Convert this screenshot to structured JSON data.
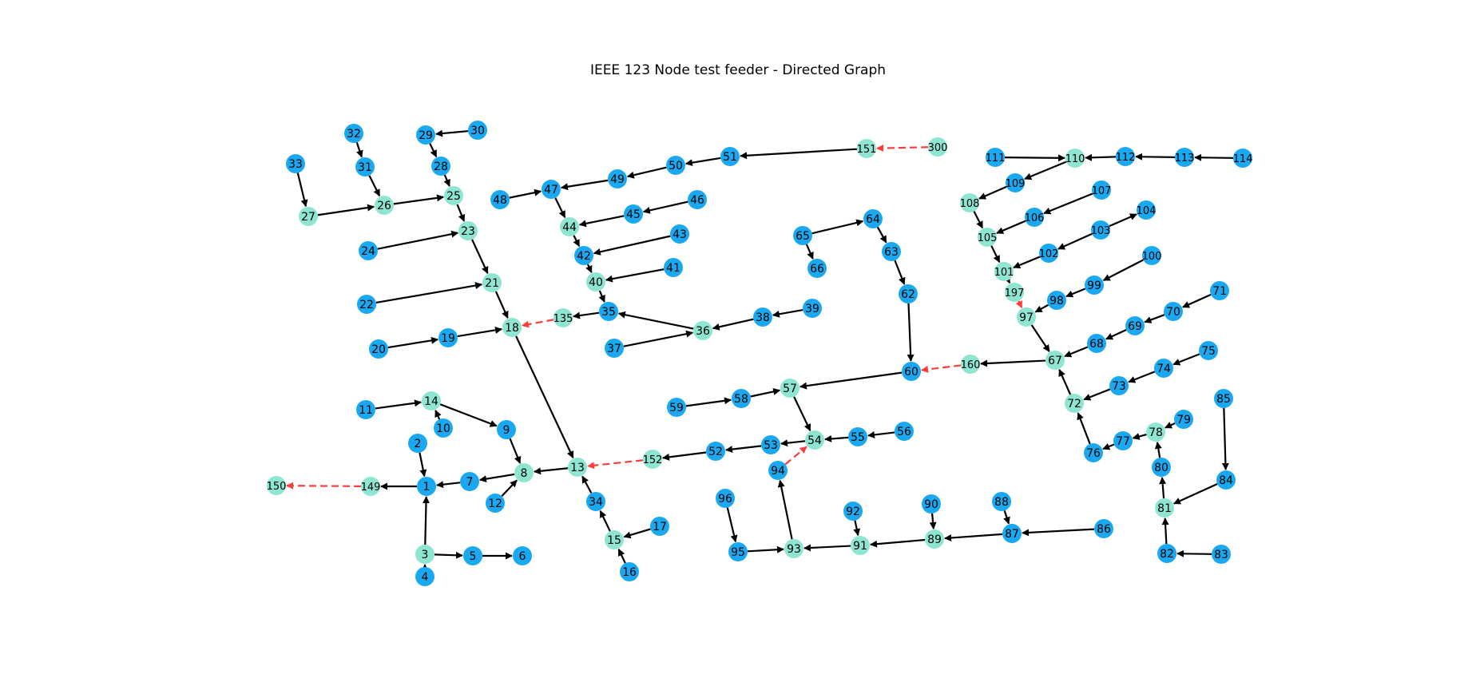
{
  "title": "IEEE 123 Node test feeder - Directed Graph",
  "colors": {
    "node_blue": "#1aa9f0",
    "node_teal": "#8ee6d2",
    "edge_normal": "#000000",
    "edge_switch": "#ff3c3c",
    "label": "#000000"
  },
  "nodes": [
    {
      "id": "1",
      "color": "blue"
    },
    {
      "id": "2",
      "color": "blue"
    },
    {
      "id": "3",
      "color": "teal"
    },
    {
      "id": "4",
      "color": "blue"
    },
    {
      "id": "5",
      "color": "blue"
    },
    {
      "id": "6",
      "color": "blue"
    },
    {
      "id": "7",
      "color": "blue"
    },
    {
      "id": "8",
      "color": "teal"
    },
    {
      "id": "9",
      "color": "blue"
    },
    {
      "id": "10",
      "color": "blue"
    },
    {
      "id": "11",
      "color": "blue"
    },
    {
      "id": "12",
      "color": "blue"
    },
    {
      "id": "13",
      "color": "teal"
    },
    {
      "id": "14",
      "color": "teal"
    },
    {
      "id": "15",
      "color": "teal"
    },
    {
      "id": "16",
      "color": "blue"
    },
    {
      "id": "17",
      "color": "blue"
    },
    {
      "id": "18",
      "color": "teal"
    },
    {
      "id": "19",
      "color": "blue"
    },
    {
      "id": "20",
      "color": "blue"
    },
    {
      "id": "21",
      "color": "teal"
    },
    {
      "id": "22",
      "color": "blue"
    },
    {
      "id": "23",
      "color": "teal"
    },
    {
      "id": "24",
      "color": "blue"
    },
    {
      "id": "25",
      "color": "teal"
    },
    {
      "id": "26",
      "color": "teal"
    },
    {
      "id": "27",
      "color": "teal"
    },
    {
      "id": "28",
      "color": "blue"
    },
    {
      "id": "29",
      "color": "blue"
    },
    {
      "id": "30",
      "color": "blue"
    },
    {
      "id": "31",
      "color": "blue"
    },
    {
      "id": "32",
      "color": "blue"
    },
    {
      "id": "33",
      "color": "blue"
    },
    {
      "id": "34",
      "color": "blue"
    },
    {
      "id": "35",
      "color": "blue"
    },
    {
      "id": "36",
      "color": "teal"
    },
    {
      "id": "37",
      "color": "blue"
    },
    {
      "id": "38",
      "color": "blue"
    },
    {
      "id": "39",
      "color": "blue"
    },
    {
      "id": "40",
      "color": "teal"
    },
    {
      "id": "41",
      "color": "blue"
    },
    {
      "id": "42",
      "color": "blue"
    },
    {
      "id": "43",
      "color": "blue"
    },
    {
      "id": "44",
      "color": "teal"
    },
    {
      "id": "45",
      "color": "blue"
    },
    {
      "id": "46",
      "color": "blue"
    },
    {
      "id": "47",
      "color": "blue"
    },
    {
      "id": "48",
      "color": "blue"
    },
    {
      "id": "49",
      "color": "blue"
    },
    {
      "id": "50",
      "color": "blue"
    },
    {
      "id": "51",
      "color": "blue"
    },
    {
      "id": "52",
      "color": "blue"
    },
    {
      "id": "53",
      "color": "blue"
    },
    {
      "id": "54",
      "color": "teal"
    },
    {
      "id": "55",
      "color": "blue"
    },
    {
      "id": "56",
      "color": "blue"
    },
    {
      "id": "57",
      "color": "teal"
    },
    {
      "id": "58",
      "color": "blue"
    },
    {
      "id": "59",
      "color": "blue"
    },
    {
      "id": "60",
      "color": "blue"
    },
    {
      "id": "62",
      "color": "blue"
    },
    {
      "id": "63",
      "color": "blue"
    },
    {
      "id": "64",
      "color": "blue"
    },
    {
      "id": "65",
      "color": "blue"
    },
    {
      "id": "66",
      "color": "blue"
    },
    {
      "id": "67",
      "color": "teal"
    },
    {
      "id": "68",
      "color": "blue"
    },
    {
      "id": "69",
      "color": "blue"
    },
    {
      "id": "70",
      "color": "blue"
    },
    {
      "id": "71",
      "color": "blue"
    },
    {
      "id": "72",
      "color": "teal"
    },
    {
      "id": "73",
      "color": "blue"
    },
    {
      "id": "74",
      "color": "blue"
    },
    {
      "id": "75",
      "color": "blue"
    },
    {
      "id": "76",
      "color": "blue"
    },
    {
      "id": "77",
      "color": "blue"
    },
    {
      "id": "78",
      "color": "teal"
    },
    {
      "id": "79",
      "color": "blue"
    },
    {
      "id": "80",
      "color": "blue"
    },
    {
      "id": "81",
      "color": "teal"
    },
    {
      "id": "82",
      "color": "blue"
    },
    {
      "id": "83",
      "color": "blue"
    },
    {
      "id": "84",
      "color": "blue"
    },
    {
      "id": "85",
      "color": "blue"
    },
    {
      "id": "86",
      "color": "blue"
    },
    {
      "id": "87",
      "color": "blue"
    },
    {
      "id": "88",
      "color": "blue"
    },
    {
      "id": "89",
      "color": "teal"
    },
    {
      "id": "90",
      "color": "blue"
    },
    {
      "id": "91",
      "color": "teal"
    },
    {
      "id": "92",
      "color": "blue"
    },
    {
      "id": "93",
      "color": "teal"
    },
    {
      "id": "94",
      "color": "blue"
    },
    {
      "id": "95",
      "color": "blue"
    },
    {
      "id": "96",
      "color": "blue"
    },
    {
      "id": "97",
      "color": "teal"
    },
    {
      "id": "98",
      "color": "blue"
    },
    {
      "id": "99",
      "color": "blue"
    },
    {
      "id": "100",
      "color": "blue"
    },
    {
      "id": "101",
      "color": "teal"
    },
    {
      "id": "102",
      "color": "blue"
    },
    {
      "id": "103",
      "color": "blue"
    },
    {
      "id": "104",
      "color": "blue"
    },
    {
      "id": "105",
      "color": "teal"
    },
    {
      "id": "106",
      "color": "blue"
    },
    {
      "id": "107",
      "color": "blue"
    },
    {
      "id": "108",
      "color": "teal"
    },
    {
      "id": "109",
      "color": "blue"
    },
    {
      "id": "110",
      "color": "teal"
    },
    {
      "id": "111",
      "color": "blue"
    },
    {
      "id": "112",
      "color": "blue"
    },
    {
      "id": "113",
      "color": "blue"
    },
    {
      "id": "114",
      "color": "blue"
    },
    {
      "id": "135",
      "color": "teal"
    },
    {
      "id": "149",
      "color": "teal"
    },
    {
      "id": "150",
      "color": "teal"
    },
    {
      "id": "151",
      "color": "teal"
    },
    {
      "id": "152",
      "color": "teal"
    },
    {
      "id": "160",
      "color": "teal"
    },
    {
      "id": "197",
      "color": "teal"
    },
    {
      "id": "300",
      "color": "teal"
    }
  ],
  "edges": [
    {
      "from": "30",
      "to": "29",
      "type": "normal"
    },
    {
      "from": "29",
      "to": "28",
      "type": "normal"
    },
    {
      "from": "28",
      "to": "25",
      "type": "normal"
    },
    {
      "from": "32",
      "to": "31",
      "type": "normal"
    },
    {
      "from": "31",
      "to": "26",
      "type": "normal"
    },
    {
      "from": "33",
      "to": "27",
      "type": "normal"
    },
    {
      "from": "27",
      "to": "26",
      "type": "normal"
    },
    {
      "from": "26",
      "to": "25",
      "type": "normal"
    },
    {
      "from": "25",
      "to": "23",
      "type": "normal"
    },
    {
      "from": "24",
      "to": "23",
      "type": "normal"
    },
    {
      "from": "23",
      "to": "21",
      "type": "normal"
    },
    {
      "from": "22",
      "to": "21",
      "type": "normal"
    },
    {
      "from": "21",
      "to": "18",
      "type": "normal"
    },
    {
      "from": "20",
      "to": "19",
      "type": "normal"
    },
    {
      "from": "19",
      "to": "18",
      "type": "normal"
    },
    {
      "from": "135",
      "to": "18",
      "type": "switch"
    },
    {
      "from": "18",
      "to": "13",
      "type": "normal"
    },
    {
      "from": "35",
      "to": "135",
      "type": "normal"
    },
    {
      "from": "36",
      "to": "35",
      "type": "normal"
    },
    {
      "from": "40",
      "to": "35",
      "type": "normal"
    },
    {
      "from": "41",
      "to": "40",
      "type": "normal"
    },
    {
      "from": "42",
      "to": "40",
      "type": "normal"
    },
    {
      "from": "43",
      "to": "42",
      "type": "normal"
    },
    {
      "from": "44",
      "to": "42",
      "type": "normal"
    },
    {
      "from": "45",
      "to": "44",
      "type": "normal"
    },
    {
      "from": "46",
      "to": "45",
      "type": "normal"
    },
    {
      "from": "47",
      "to": "44",
      "type": "normal"
    },
    {
      "from": "48",
      "to": "47",
      "type": "normal"
    },
    {
      "from": "49",
      "to": "47",
      "type": "normal"
    },
    {
      "from": "50",
      "to": "49",
      "type": "normal"
    },
    {
      "from": "51",
      "to": "50",
      "type": "normal"
    },
    {
      "from": "151",
      "to": "51",
      "type": "normal"
    },
    {
      "from": "300",
      "to": "151",
      "type": "switch"
    },
    {
      "from": "37",
      "to": "36",
      "type": "normal"
    },
    {
      "from": "38",
      "to": "36",
      "type": "normal"
    },
    {
      "from": "39",
      "to": "38",
      "type": "normal"
    },
    {
      "from": "11",
      "to": "14",
      "type": "normal"
    },
    {
      "from": "10",
      "to": "14",
      "type": "normal"
    },
    {
      "from": "14",
      "to": "9",
      "type": "normal"
    },
    {
      "from": "9",
      "to": "8",
      "type": "normal"
    },
    {
      "from": "12",
      "to": "8",
      "type": "normal"
    },
    {
      "from": "8",
      "to": "7",
      "type": "normal"
    },
    {
      "from": "7",
      "to": "1",
      "type": "normal"
    },
    {
      "from": "2",
      "to": "1",
      "type": "normal"
    },
    {
      "from": "3",
      "to": "1",
      "type": "normal"
    },
    {
      "from": "3",
      "to": "5",
      "type": "normal"
    },
    {
      "from": "5",
      "to": "6",
      "type": "normal"
    },
    {
      "from": "4",
      "to": "3",
      "type": "normal"
    },
    {
      "from": "1",
      "to": "149",
      "type": "normal"
    },
    {
      "from": "149",
      "to": "150",
      "type": "switch"
    },
    {
      "from": "13",
      "to": "8",
      "type": "normal"
    },
    {
      "from": "34",
      "to": "13",
      "type": "normal"
    },
    {
      "from": "15",
      "to": "34",
      "type": "normal"
    },
    {
      "from": "17",
      "to": "15",
      "type": "normal"
    },
    {
      "from": "16",
      "to": "15",
      "type": "normal"
    },
    {
      "from": "152",
      "to": "13",
      "type": "switch"
    },
    {
      "from": "52",
      "to": "152",
      "type": "normal"
    },
    {
      "from": "53",
      "to": "52",
      "type": "normal"
    },
    {
      "from": "54",
      "to": "53",
      "type": "normal"
    },
    {
      "from": "55",
      "to": "54",
      "type": "normal"
    },
    {
      "from": "56",
      "to": "55",
      "type": "normal"
    },
    {
      "from": "57",
      "to": "54",
      "type": "normal"
    },
    {
      "from": "58",
      "to": "57",
      "type": "normal"
    },
    {
      "from": "59",
      "to": "58",
      "type": "normal"
    },
    {
      "from": "60",
      "to": "57",
      "type": "normal"
    },
    {
      "from": "94",
      "to": "54",
      "type": "switch"
    },
    {
      "from": "93",
      "to": "94",
      "type": "normal"
    },
    {
      "from": "95",
      "to": "93",
      "type": "normal"
    },
    {
      "from": "96",
      "to": "95",
      "type": "normal"
    },
    {
      "from": "91",
      "to": "93",
      "type": "normal"
    },
    {
      "from": "92",
      "to": "91",
      "type": "normal"
    },
    {
      "from": "89",
      "to": "91",
      "type": "normal"
    },
    {
      "from": "90",
      "to": "89",
      "type": "normal"
    },
    {
      "from": "87",
      "to": "89",
      "type": "normal"
    },
    {
      "from": "88",
      "to": "87",
      "type": "normal"
    },
    {
      "from": "86",
      "to": "87",
      "type": "normal"
    },
    {
      "from": "65",
      "to": "64",
      "type": "normal"
    },
    {
      "from": "65",
      "to": "66",
      "type": "normal"
    },
    {
      "from": "64",
      "to": "63",
      "type": "normal"
    },
    {
      "from": "63",
      "to": "62",
      "type": "normal"
    },
    {
      "from": "62",
      "to": "60",
      "type": "normal"
    },
    {
      "from": "160",
      "to": "60",
      "type": "switch"
    },
    {
      "from": "67",
      "to": "160",
      "type": "normal"
    },
    {
      "from": "97",
      "to": "67",
      "type": "normal"
    },
    {
      "from": "68",
      "to": "67",
      "type": "normal"
    },
    {
      "from": "69",
      "to": "68",
      "type": "normal"
    },
    {
      "from": "70",
      "to": "69",
      "type": "normal"
    },
    {
      "from": "71",
      "to": "70",
      "type": "normal"
    },
    {
      "from": "72",
      "to": "67",
      "type": "normal"
    },
    {
      "from": "73",
      "to": "72",
      "type": "normal"
    },
    {
      "from": "74",
      "to": "73",
      "type": "normal"
    },
    {
      "from": "75",
      "to": "74",
      "type": "normal"
    },
    {
      "from": "76",
      "to": "72",
      "type": "normal"
    },
    {
      "from": "77",
      "to": "76",
      "type": "normal"
    },
    {
      "from": "78",
      "to": "77",
      "type": "normal"
    },
    {
      "from": "79",
      "to": "78",
      "type": "normal"
    },
    {
      "from": "80",
      "to": "78",
      "type": "normal"
    },
    {
      "from": "81",
      "to": "80",
      "type": "normal"
    },
    {
      "from": "82",
      "to": "81",
      "type": "normal"
    },
    {
      "from": "83",
      "to": "82",
      "type": "normal"
    },
    {
      "from": "84",
      "to": "81",
      "type": "normal"
    },
    {
      "from": "85",
      "to": "84",
      "type": "normal"
    },
    {
      "from": "98",
      "to": "97",
      "type": "normal"
    },
    {
      "from": "99",
      "to": "98",
      "type": "normal"
    },
    {
      "from": "100",
      "to": "99",
      "type": "normal"
    },
    {
      "from": "197",
      "to": "97",
      "type": "switch"
    },
    {
      "from": "101",
      "to": "197",
      "type": "normal"
    },
    {
      "from": "102",
      "to": "101",
      "type": "normal"
    },
    {
      "from": "103",
      "to": "102",
      "type": "normal"
    },
    {
      "from": "103",
      "to": "104",
      "type": "normal"
    },
    {
      "from": "105",
      "to": "101",
      "type": "normal"
    },
    {
      "from": "106",
      "to": "105",
      "type": "normal"
    },
    {
      "from": "107",
      "to": "106",
      "type": "normal"
    },
    {
      "from": "108",
      "to": "105",
      "type": "normal"
    },
    {
      "from": "109",
      "to": "108",
      "type": "normal"
    },
    {
      "from": "110",
      "to": "109",
      "type": "normal"
    },
    {
      "from": "111",
      "to": "110",
      "type": "normal"
    },
    {
      "from": "112",
      "to": "110",
      "type": "normal"
    },
    {
      "from": "113",
      "to": "112",
      "type": "normal"
    },
    {
      "from": "114",
      "to": "113",
      "type": "normal"
    }
  ]
}
